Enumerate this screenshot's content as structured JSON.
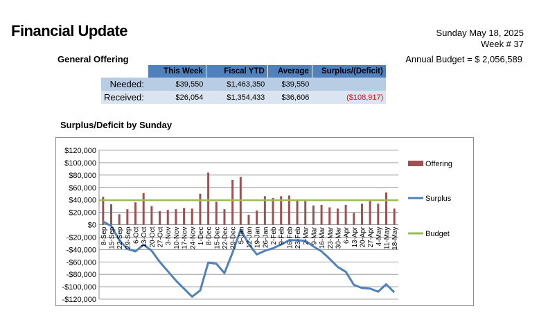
{
  "header": {
    "title": "Financial Update",
    "date": "Sunday May 18, 2025",
    "week": "Week # 37",
    "annual_budget": "Annual Budget = $ 2,056,589"
  },
  "offering": {
    "section_title": "General Offering",
    "columns": [
      "This Week",
      "Fiscal YTD",
      "Average",
      "Surplus/(Deficit)"
    ],
    "rows": [
      {
        "label": "Needed:",
        "values": [
          "$39,550",
          "$1,463,350",
          "$39,550",
          ""
        ]
      },
      {
        "label": "Received:",
        "values": [
          "$26,054",
          "$1,354,433",
          "$36,606",
          "($108,917)"
        ]
      }
    ]
  },
  "colors": {
    "offering": "#a05050",
    "surplus": "#4f81bd",
    "budget": "#9bbb59",
    "table_header": "#4f81bd",
    "negative": "#ff0000"
  },
  "chart_data": {
    "type": "bar+line",
    "title": "Surplus/Deficit by Sunday",
    "categories": [
      "8-Sep",
      "15-Sep",
      "22-Sep",
      "29-Sep",
      "6-Oct",
      "13-Oct",
      "20-Oct",
      "27-Oct",
      "3-Nov",
      "10-Nov",
      "17-Nov",
      "24-Nov",
      "1-Dec",
      "8-Dec",
      "15-Dec",
      "22-Dec",
      "29-Dec",
      "5-Jan",
      "12-Jan",
      "19-Jan",
      "26-Jan",
      "2-Feb",
      "9-Feb",
      "16-Feb",
      "23-Feb",
      "2-Mar",
      "9-Mar",
      "16-Mar",
      "23-Mar",
      "30-Mar",
      "6-Apr",
      "13-Apr",
      "20-Apr",
      "27-Apr",
      "4-May",
      "11-May",
      "18-May"
    ],
    "ylim": [
      -120000,
      120000
    ],
    "ytick_labels": [
      "$120,000",
      "$100,000",
      "$80,000",
      "$60,000",
      "$40,000",
      "$20,000",
      "$0",
      "-$20,000",
      "-$40,000",
      "-$60,000",
      "-$80,000",
      "-$100,000",
      "-$120,000"
    ],
    "grid": true,
    "legend_position": "right",
    "series": [
      {
        "name": "Offering",
        "type": "bar",
        "values": [
          45000,
          33000,
          17000,
          25000,
          36000,
          51000,
          30000,
          22000,
          24000,
          25000,
          27000,
          26000,
          50000,
          84000,
          37000,
          25000,
          72000,
          77000,
          16000,
          23000,
          46000,
          43000,
          46000,
          47000,
          39000,
          38000,
          31000,
          32000,
          28000,
          26000,
          32000,
          19000,
          34000,
          38000,
          34000,
          52000,
          26000
        ]
      },
      {
        "name": "Surplus",
        "type": "line",
        "values": [
          5000,
          -2000,
          -25000,
          -39000,
          -43000,
          -32000,
          -42000,
          -60000,
          -75000,
          -90000,
          -103000,
          -116000,
          -106000,
          -61000,
          -63000,
          -78000,
          -45000,
          -8000,
          -31000,
          -48000,
          -42000,
          -38000,
          -32000,
          -25000,
          -25000,
          -26000,
          -35000,
          -43000,
          -55000,
          -68000,
          -76000,
          -97000,
          -102000,
          -103000,
          -108000,
          -96000,
          -109000
        ]
      },
      {
        "name": "Budget",
        "type": "line",
        "values": [
          39550,
          39550,
          39550,
          39550,
          39550,
          39550,
          39550,
          39550,
          39550,
          39550,
          39550,
          39550,
          39550,
          39550,
          39550,
          39550,
          39550,
          39550,
          39550,
          39550,
          39550,
          39550,
          39550,
          39550,
          39550,
          39550,
          39550,
          39550,
          39550,
          39550,
          39550,
          39550,
          39550,
          39550,
          39550,
          39550,
          39550
        ]
      }
    ]
  }
}
